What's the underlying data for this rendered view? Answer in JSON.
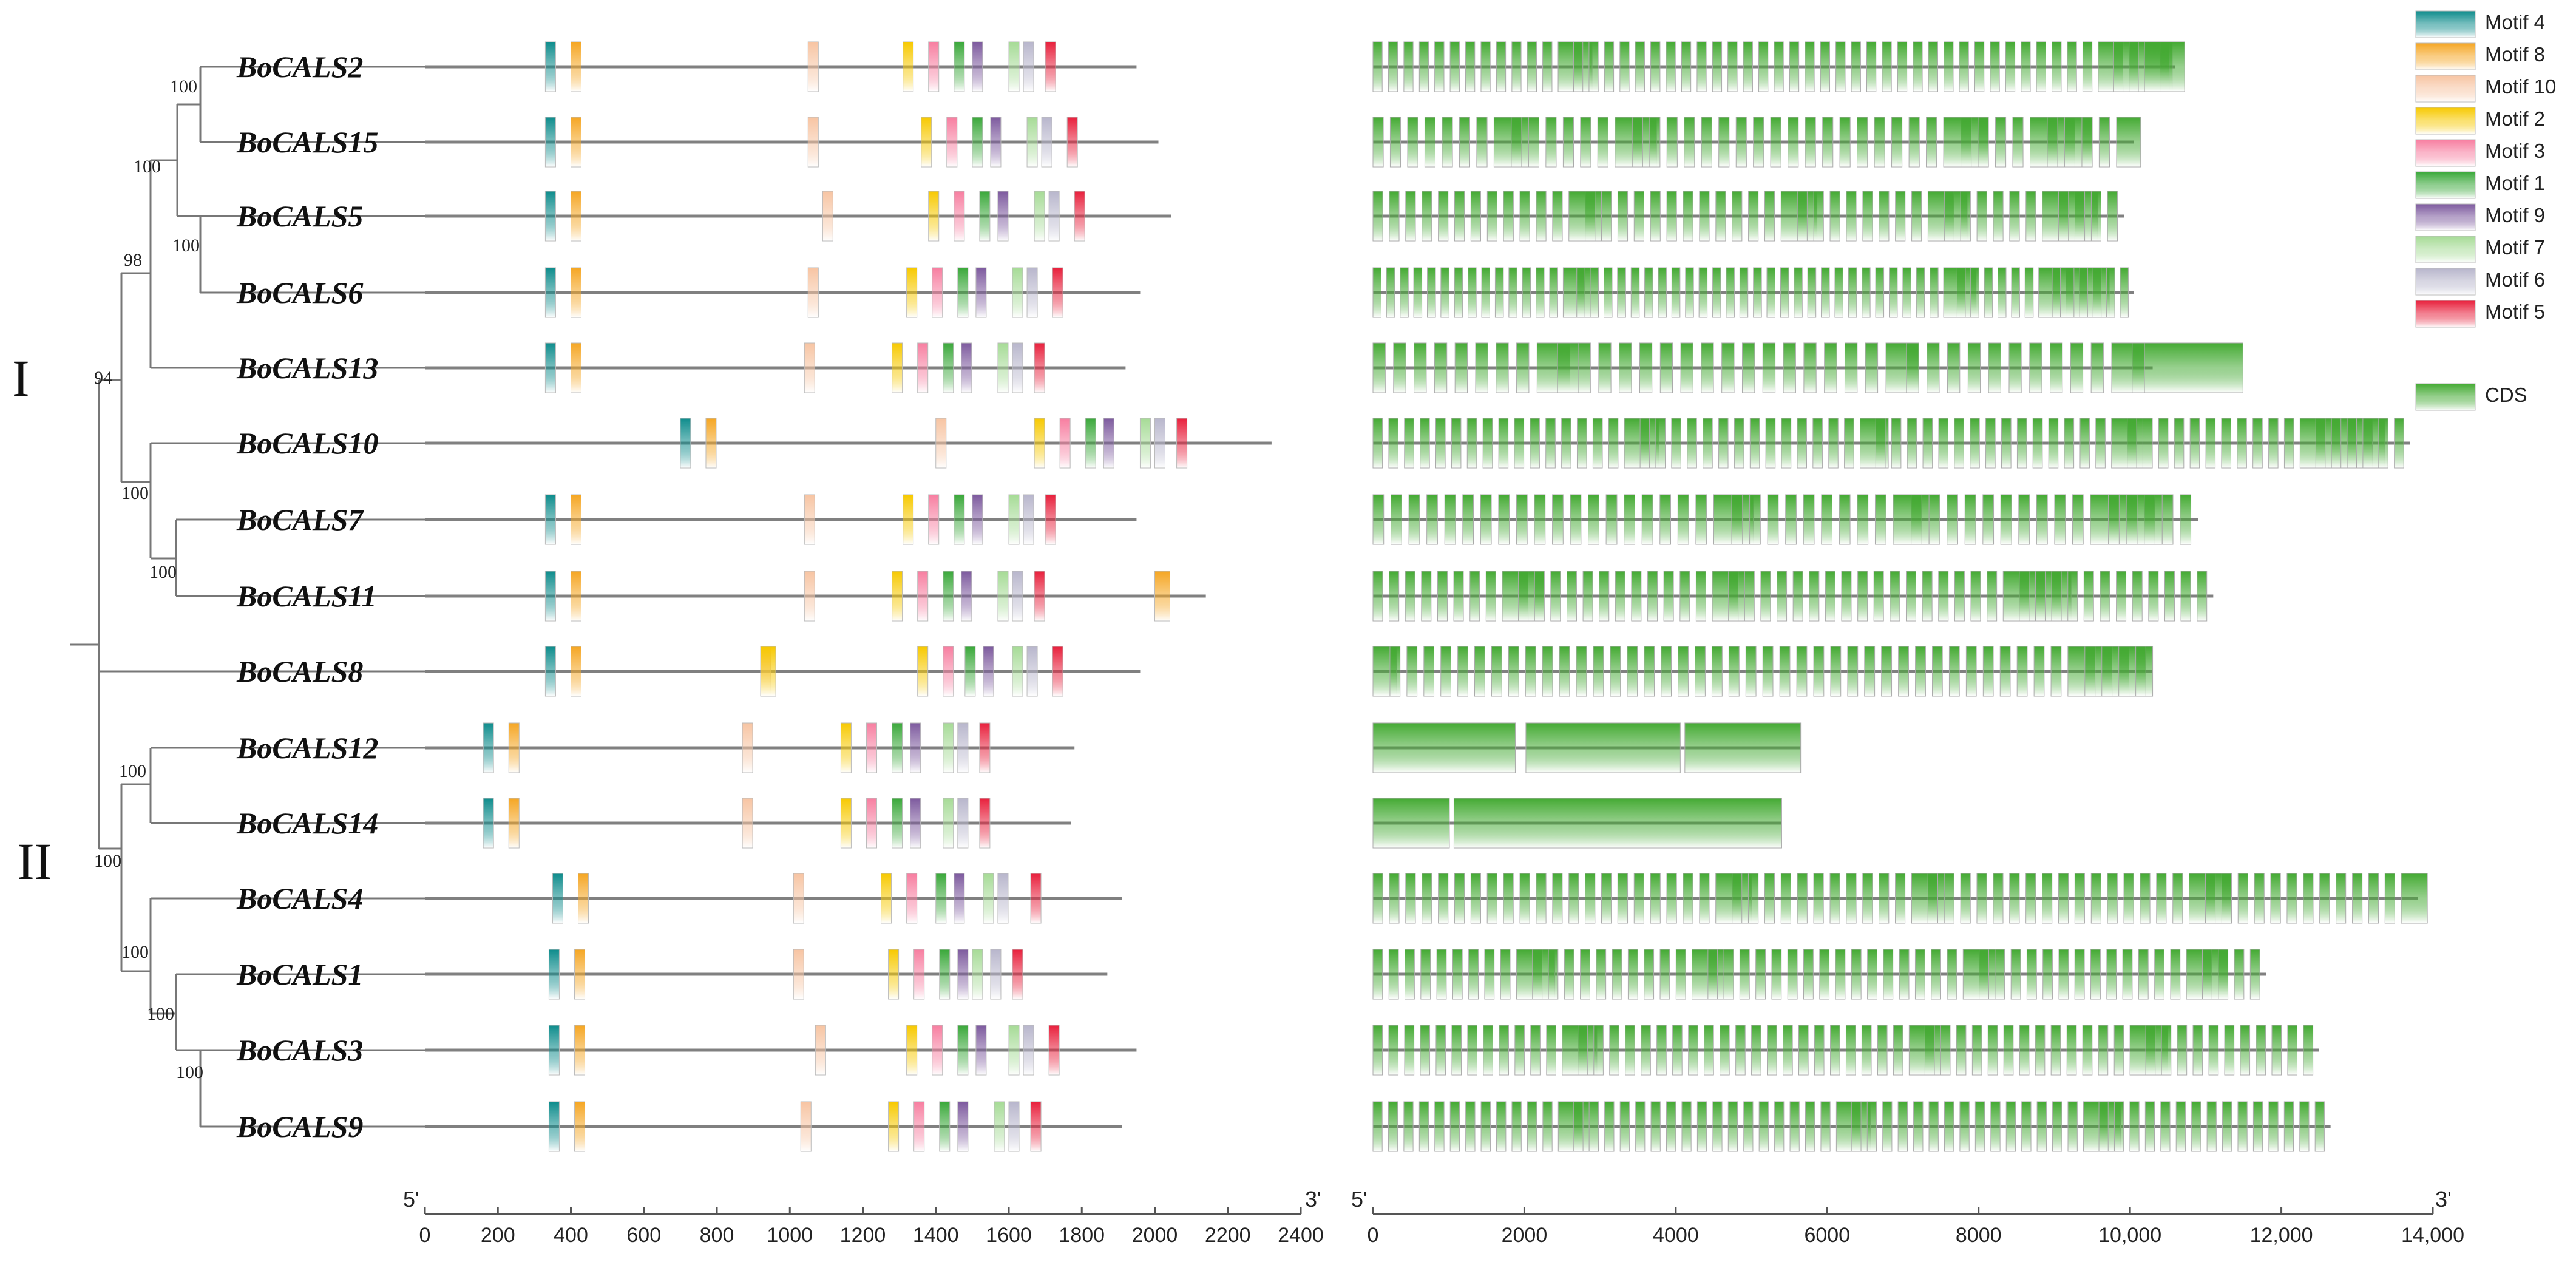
{
  "clades": {
    "I": "I",
    "II": "II"
  },
  "bootstrap": {
    "b_2_15": "100",
    "b_5_6": "100",
    "b_top3": "100",
    "b_top4": "98",
    "b_cladeI": "94",
    "b_10grp": "100",
    "b_7_11": "100",
    "b_12_14": "100",
    "b_cladeII": "100",
    "b_4grp": "100",
    "b_1grp": "100",
    "b_3_9": "100"
  },
  "axes": {
    "motif": {
      "start": "5'",
      "end": "3'",
      "max": 2400,
      "ticks": [
        "0",
        "200",
        "400",
        "600",
        "800",
        "1000",
        "1200",
        "1400",
        "1600",
        "1800",
        "2000",
        "2200",
        "2400"
      ]
    },
    "gene": {
      "start": "5'",
      "end": "3'",
      "max": 14000,
      "ticks": [
        "0",
        "2000",
        "4000",
        "6000",
        "8000",
        "10,000",
        "12,000",
        "14,000"
      ]
    }
  },
  "legend": {
    "motifs": [
      {
        "name": "Motif 4",
        "color": "#0e8c8c"
      },
      {
        "name": "Motif 8",
        "color": "#f5a623"
      },
      {
        "name": "Motif 10",
        "color": "#f7c4a2"
      },
      {
        "name": "Motif 2",
        "color": "#f7c900"
      },
      {
        "name": "Motif 3",
        "color": "#f77ea0"
      },
      {
        "name": "Motif 1",
        "color": "#3aa83a"
      },
      {
        "name": "Motif 9",
        "color": "#7d5a9e"
      },
      {
        "name": "Motif 7",
        "color": "#a6db96"
      },
      {
        "name": "Motif 6",
        "color": "#b8b6cc"
      },
      {
        "name": "Motif 5",
        "color": "#e8203c"
      }
    ],
    "cds": {
      "name": "CDS",
      "color": "#44aa33"
    }
  },
  "genes": [
    {
      "name": "BoCALS2",
      "protein_len": 1950,
      "gene_len": 10600
    },
    {
      "name": "BoCALS15",
      "protein_len": 2010,
      "gene_len": 10050
    },
    {
      "name": "BoCALS5",
      "protein_len": 2045,
      "gene_len": 9920
    },
    {
      "name": "BoCALS6",
      "protein_len": 1960,
      "gene_len": 10050
    },
    {
      "name": "BoCALS13",
      "protein_len": 1920,
      "gene_len": 10300
    },
    {
      "name": "BoCALS10",
      "protein_len": 2320,
      "gene_len": 13700
    },
    {
      "name": "BoCALS7",
      "protein_len": 1950,
      "gene_len": 10900
    },
    {
      "name": "BoCALS11",
      "protein_len": 2140,
      "gene_len": 11100
    },
    {
      "name": "BoCALS8",
      "protein_len": 1960,
      "gene_len": 10300
    },
    {
      "name": "BoCALS12",
      "protein_len": 1780,
      "gene_len": 5650
    },
    {
      "name": "BoCALS14",
      "protein_len": 1770,
      "gene_len": 5400
    },
    {
      "name": "BoCALS4",
      "protein_len": 1910,
      "gene_len": 13800
    },
    {
      "name": "BoCALS1",
      "protein_len": 1870,
      "gene_len": 11800
    },
    {
      "name": "BoCALS3",
      "protein_len": 1950,
      "gene_len": 12500
    },
    {
      "name": "BoCALS9",
      "protein_len": 1910,
      "gene_len": 12650
    }
  ]
}
